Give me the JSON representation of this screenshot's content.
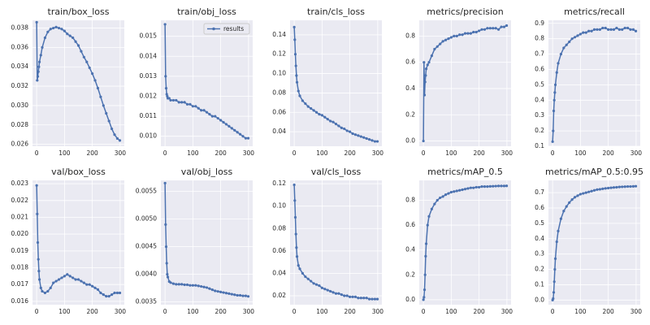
{
  "chart_data": [
    {
      "type": "line",
      "title": "train/box_loss",
      "x": [
        0,
        2,
        4,
        6,
        8,
        10,
        15,
        20,
        30,
        40,
        50,
        60,
        70,
        80,
        90,
        100,
        110,
        120,
        130,
        140,
        150,
        160,
        170,
        180,
        190,
        200,
        210,
        220,
        230,
        240,
        250,
        260,
        270,
        280,
        290,
        299
      ],
      "series": [
        {
          "color": "#4c72b0",
          "values": [
            0.0386,
            0.0326,
            0.033,
            0.0335,
            0.034,
            0.0345,
            0.0352,
            0.036,
            0.037,
            0.0376,
            0.0379,
            0.038,
            0.0381,
            0.038,
            0.0379,
            0.0377,
            0.0374,
            0.0372,
            0.037,
            0.0366,
            0.0362,
            0.0356,
            0.035,
            0.0345,
            0.0339,
            0.0333,
            0.0326,
            0.0318,
            0.0309,
            0.03,
            0.0292,
            0.0284,
            0.0276,
            0.027,
            0.0266,
            0.0264
          ]
        }
      ],
      "xlim": [
        -15,
        315
      ],
      "xticks": [
        0,
        100,
        200,
        300
      ],
      "ylim": [
        0.0258,
        0.0388
      ],
      "yticks": [
        0.026,
        0.028,
        {
          "value": 0.03,
          "label": "0.030"
        },
        0.032,
        0.034,
        0.036,
        0.038
      ],
      "grid": true
    },
    {
      "type": "line",
      "title": "train/obj_loss",
      "x": [
        0,
        2,
        4,
        6,
        8,
        10,
        15,
        20,
        30,
        40,
        50,
        60,
        70,
        80,
        90,
        100,
        110,
        120,
        130,
        140,
        150,
        160,
        170,
        180,
        190,
        200,
        210,
        220,
        230,
        240,
        250,
        260,
        270,
        280,
        290,
        299
      ],
      "series": [
        {
          "name": "results",
          "color": "#4c72b0",
          "values": [
            0.0156,
            0.013,
            0.0124,
            0.0121,
            0.012,
            0.0119,
            0.0119,
            0.0118,
            0.0118,
            0.0118,
            0.0117,
            0.0117,
            0.0117,
            0.0116,
            0.0116,
            0.0115,
            0.0115,
            0.0114,
            0.0113,
            0.0113,
            0.0112,
            0.0111,
            0.011,
            0.011,
            0.0109,
            0.0108,
            0.0107,
            0.0106,
            0.0105,
            0.0104,
            0.0103,
            0.0102,
            0.0101,
            0.01,
            0.0099,
            0.0099
          ]
        }
      ],
      "xlim": [
        -15,
        315
      ],
      "xticks": [
        0,
        100,
        200,
        300
      ],
      "ylim": [
        0.0095,
        0.0158
      ],
      "yticks": [
        {
          "value": 0.01,
          "label": "0.010"
        },
        0.011,
        0.012,
        0.013,
        0.014,
        0.015
      ],
      "grid": true,
      "legend": "upper right"
    },
    {
      "type": "line",
      "title": "train/cls_loss",
      "x": [
        0,
        2,
        4,
        6,
        8,
        10,
        15,
        20,
        30,
        40,
        50,
        60,
        70,
        80,
        90,
        100,
        110,
        120,
        130,
        140,
        150,
        160,
        170,
        180,
        190,
        200,
        210,
        220,
        230,
        240,
        250,
        260,
        270,
        280,
        290,
        299
      ],
      "series": [
        {
          "color": "#4c72b0",
          "values": [
            0.148,
            0.135,
            0.12,
            0.108,
            0.098,
            0.091,
            0.082,
            0.077,
            0.072,
            0.069,
            0.066,
            0.064,
            0.062,
            0.06,
            0.058,
            0.057,
            0.055,
            0.053,
            0.051,
            0.05,
            0.048,
            0.046,
            0.044,
            0.043,
            0.041,
            0.04,
            0.038,
            0.037,
            0.036,
            0.035,
            0.034,
            0.033,
            0.032,
            0.031,
            0.03,
            0.03
          ]
        }
      ],
      "xlim": [
        -15,
        315
      ],
      "xticks": [
        0,
        100,
        200,
        300
      ],
      "ylim": [
        0.025,
        0.155
      ],
      "yticks": [
        0.04,
        0.06,
        0.08,
        {
          "value": 0.1,
          "label": "0.10"
        },
        0.12,
        0.14
      ],
      "grid": true
    },
    {
      "type": "line",
      "title": "metrics/precision",
      "x": [
        0,
        2,
        4,
        6,
        8,
        10,
        15,
        20,
        30,
        40,
        50,
        60,
        70,
        80,
        90,
        100,
        110,
        120,
        130,
        140,
        150,
        160,
        170,
        180,
        190,
        200,
        210,
        220,
        230,
        240,
        250,
        260,
        270,
        280,
        290,
        299
      ],
      "series": [
        {
          "color": "#4c72b0",
          "values": [
            0.0,
            0.6,
            0.35,
            0.45,
            0.5,
            0.55,
            0.58,
            0.6,
            0.65,
            0.7,
            0.72,
            0.74,
            0.76,
            0.77,
            0.78,
            0.79,
            0.8,
            0.8,
            0.81,
            0.81,
            0.82,
            0.82,
            0.82,
            0.83,
            0.83,
            0.84,
            0.85,
            0.85,
            0.86,
            0.86,
            0.86,
            0.86,
            0.85,
            0.87,
            0.87,
            0.88
          ]
        }
      ],
      "xlim": [
        -15,
        315
      ],
      "xticks": [
        0,
        100,
        200,
        300
      ],
      "ylim": [
        -0.04,
        0.92
      ],
      "yticks": [
        {
          "value": 0,
          "label": "0.0"
        },
        0.2,
        0.4,
        0.6,
        0.8
      ],
      "grid": true
    },
    {
      "type": "line",
      "title": "metrics/recall",
      "x": [
        0,
        2,
        4,
        6,
        8,
        10,
        15,
        20,
        30,
        40,
        50,
        60,
        70,
        80,
        90,
        100,
        110,
        120,
        130,
        140,
        150,
        160,
        170,
        180,
        190,
        200,
        210,
        220,
        230,
        240,
        250,
        260,
        270,
        280,
        290,
        299
      ],
      "series": [
        {
          "color": "#4c72b0",
          "values": [
            0.13,
            0.2,
            0.33,
            0.4,
            0.45,
            0.5,
            0.58,
            0.64,
            0.7,
            0.74,
            0.76,
            0.78,
            0.8,
            0.81,
            0.82,
            0.83,
            0.84,
            0.84,
            0.85,
            0.85,
            0.86,
            0.86,
            0.86,
            0.87,
            0.87,
            0.86,
            0.86,
            0.86,
            0.87,
            0.86,
            0.86,
            0.87,
            0.87,
            0.86,
            0.86,
            0.85
          ]
        }
      ],
      "xlim": [
        -15,
        315
      ],
      "xticks": [
        0,
        100,
        200,
        300
      ],
      "ylim": [
        0.1,
        0.92
      ],
      "yticks": [
        0.1,
        0.2,
        0.3,
        0.4,
        0.5,
        0.6,
        0.7,
        0.8,
        0.9
      ],
      "grid": true
    },
    {
      "type": "line",
      "title": "val/box_loss",
      "x": [
        0,
        2,
        4,
        6,
        8,
        10,
        15,
        20,
        30,
        40,
        50,
        60,
        70,
        80,
        90,
        100,
        110,
        120,
        130,
        140,
        150,
        160,
        170,
        180,
        190,
        200,
        210,
        220,
        230,
        240,
        250,
        260,
        270,
        280,
        290,
        299
      ],
      "series": [
        {
          "color": "#4c72b0",
          "values": [
            0.0229,
            0.0212,
            0.0195,
            0.0185,
            0.0178,
            0.0173,
            0.0168,
            0.0166,
            0.0165,
            0.0166,
            0.0168,
            0.0171,
            0.0172,
            0.0173,
            0.0174,
            0.0175,
            0.0176,
            0.0175,
            0.0174,
            0.0173,
            0.0173,
            0.0172,
            0.0171,
            0.017,
            0.017,
            0.0169,
            0.0168,
            0.0167,
            0.0165,
            0.0164,
            0.0163,
            0.0163,
            0.0164,
            0.0165,
            0.0165,
            0.0165
          ]
        }
      ],
      "xlim": [
        -15,
        315
      ],
      "xticks": [
        0,
        100,
        200,
        300
      ],
      "ylim": [
        0.0158,
        0.0232
      ],
      "yticks": [
        0.016,
        0.017,
        0.018,
        0.019,
        {
          "value": 0.02,
          "label": "0.020"
        },
        0.021,
        0.022,
        0.023
      ],
      "grid": true
    },
    {
      "type": "line",
      "title": "val/obj_loss",
      "x": [
        0,
        2,
        4,
        6,
        8,
        10,
        15,
        20,
        30,
        40,
        50,
        60,
        70,
        80,
        90,
        100,
        110,
        120,
        130,
        140,
        150,
        160,
        170,
        180,
        190,
        200,
        210,
        220,
        230,
        240,
        250,
        260,
        270,
        280,
        290,
        299
      ],
      "series": [
        {
          "color": "#4c72b0",
          "values": [
            0.00565,
            0.0049,
            0.0045,
            0.0042,
            0.004,
            0.00395,
            0.00387,
            0.00385,
            0.00383,
            0.00382,
            0.00382,
            0.00382,
            0.00381,
            0.00381,
            0.0038,
            0.0038,
            0.0038,
            0.00379,
            0.00378,
            0.00377,
            0.00376,
            0.00374,
            0.00372,
            0.0037,
            0.00369,
            0.00368,
            0.00367,
            0.00366,
            0.00365,
            0.00364,
            0.00363,
            0.00362,
            0.00362,
            0.00361,
            0.00361,
            0.0036
          ]
        }
      ],
      "xlim": [
        -15,
        315
      ],
      "xticks": [
        0,
        100,
        200,
        300
      ],
      "ylim": [
        0.00345,
        0.0057
      ],
      "yticks": [
        0.0035,
        {
          "value": 0.004,
          "label": "0.0040"
        },
        0.0045,
        {
          "value": 0.005,
          "label": "0.0050"
        },
        0.0055
      ],
      "grid": true
    },
    {
      "type": "line",
      "title": "val/cls_loss",
      "x": [
        0,
        2,
        4,
        6,
        8,
        10,
        15,
        20,
        30,
        40,
        50,
        60,
        70,
        80,
        90,
        100,
        110,
        120,
        130,
        140,
        150,
        160,
        170,
        180,
        190,
        200,
        210,
        220,
        230,
        240,
        250,
        260,
        270,
        280,
        290,
        299
      ],
      "series": [
        {
          "color": "#4c72b0",
          "values": [
            0.119,
            0.105,
            0.09,
            0.075,
            0.063,
            0.055,
            0.047,
            0.044,
            0.04,
            0.037,
            0.035,
            0.033,
            0.031,
            0.03,
            0.029,
            0.027,
            0.026,
            0.025,
            0.024,
            0.023,
            0.022,
            0.022,
            0.021,
            0.02,
            0.02,
            0.019,
            0.019,
            0.019,
            0.018,
            0.018,
            0.018,
            0.018,
            0.017,
            0.017,
            0.017,
            0.017
          ]
        }
      ],
      "xlim": [
        -15,
        315
      ],
      "xticks": [
        0,
        100,
        200,
        300
      ],
      "ylim": [
        0.012,
        0.123
      ],
      "yticks": [
        0.02,
        0.04,
        0.06,
        0.08,
        {
          "value": 0.1,
          "label": "0.10"
        },
        0.12
      ],
      "grid": true
    },
    {
      "type": "line",
      "title": "metrics/mAP_0.5",
      "x": [
        0,
        2,
        4,
        6,
        8,
        10,
        15,
        20,
        30,
        40,
        50,
        60,
        70,
        80,
        90,
        100,
        110,
        120,
        130,
        140,
        150,
        160,
        170,
        180,
        190,
        200,
        210,
        220,
        230,
        240,
        250,
        260,
        270,
        280,
        290,
        299
      ],
      "series": [
        {
          "color": "#4c72b0",
          "values": [
            0.0,
            0.02,
            0.08,
            0.2,
            0.35,
            0.45,
            0.6,
            0.67,
            0.73,
            0.77,
            0.8,
            0.82,
            0.83,
            0.845,
            0.855,
            0.865,
            0.87,
            0.875,
            0.88,
            0.885,
            0.89,
            0.895,
            0.9,
            0.9,
            0.905,
            0.905,
            0.91,
            0.91,
            0.91,
            0.912,
            0.913,
            0.914,
            0.915,
            0.915,
            0.915,
            0.916
          ]
        }
      ],
      "xlim": [
        -15,
        315
      ],
      "xticks": [
        0,
        100,
        200,
        300
      ],
      "ylim": [
        -0.04,
        0.96
      ],
      "yticks": [
        {
          "value": 0,
          "label": "0.0"
        },
        0.2,
        0.4,
        0.6,
        0.8
      ],
      "grid": true
    },
    {
      "type": "line",
      "title": "metrics/mAP_0.5:0.95",
      "x": [
        0,
        2,
        4,
        6,
        8,
        10,
        15,
        20,
        30,
        40,
        50,
        60,
        70,
        80,
        90,
        100,
        110,
        120,
        130,
        140,
        150,
        160,
        170,
        180,
        190,
        200,
        210,
        220,
        230,
        240,
        250,
        260,
        270,
        280,
        290,
        299
      ],
      "series": [
        {
          "color": "#4c72b0",
          "values": [
            0.0,
            0.01,
            0.05,
            0.12,
            0.2,
            0.27,
            0.38,
            0.45,
            0.53,
            0.58,
            0.61,
            0.635,
            0.655,
            0.67,
            0.68,
            0.69,
            0.695,
            0.7,
            0.705,
            0.71,
            0.715,
            0.72,
            0.722,
            0.725,
            0.728,
            0.73,
            0.732,
            0.734,
            0.735,
            0.737,
            0.738,
            0.739,
            0.74,
            0.74,
            0.741,
            0.742
          ]
        }
      ],
      "xlim": [
        -15,
        315
      ],
      "xticks": [
        0,
        100,
        200,
        300
      ],
      "ylim": [
        -0.03,
        0.78
      ],
      "yticks": [
        {
          "value": 0,
          "label": "0.0"
        },
        0.1,
        0.2,
        0.3,
        0.4,
        0.5,
        0.6,
        0.7
      ],
      "grid": true
    }
  ]
}
